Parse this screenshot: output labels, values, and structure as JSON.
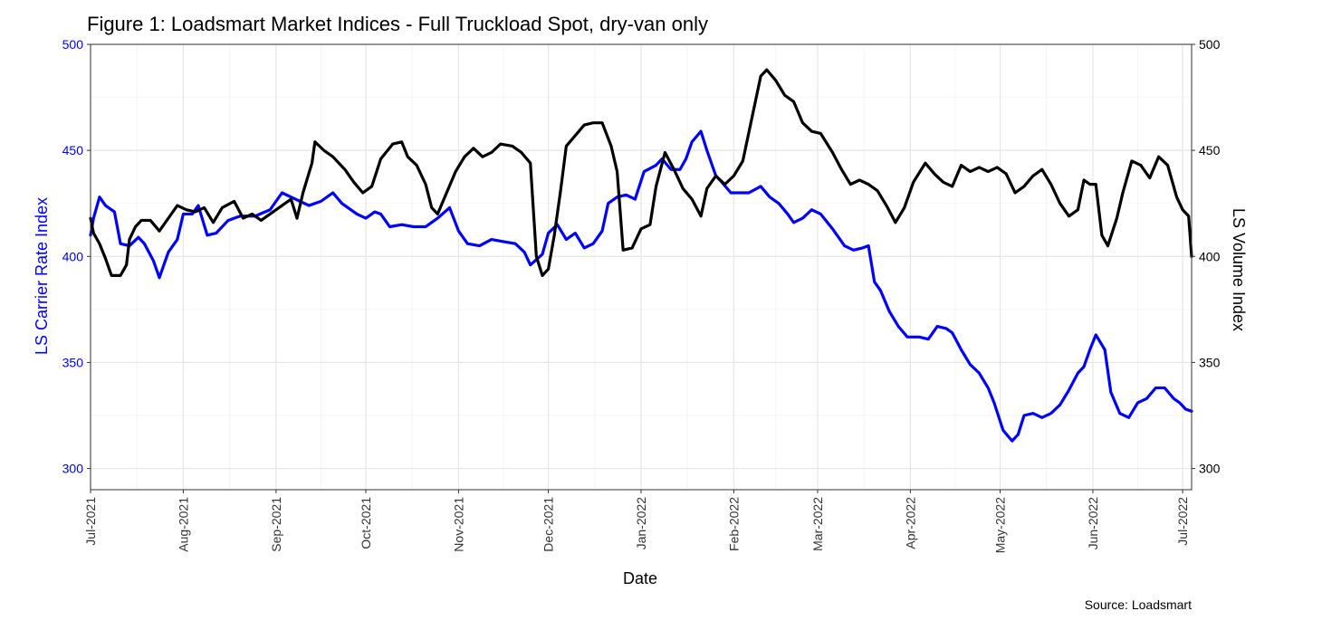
{
  "chart_data": {
    "type": "line",
    "title": "Figure 1: Loadsmart Market Indices - Full Truckload Spot, dry-van only",
    "xlabel": "Date",
    "ylabel_left": "LS Carrier Rate Index",
    "ylabel_right": "LS Volume Index",
    "caption": "Source: Loadsmart",
    "x_range": [
      "2021-07-01",
      "2022-07-04"
    ],
    "x_ticks": [
      "Jul-2021",
      "Aug-2021",
      "Sep-2021",
      "Oct-2021",
      "Nov-2021",
      "Dec-2021",
      "Jan-2022",
      "Feb-2022",
      "Mar-2022",
      "Apr-2022",
      "May-2022",
      "Jun-2022",
      "Jul-2022"
    ],
    "y_left_range": [
      290,
      500
    ],
    "y_right_range": [
      290,
      500
    ],
    "y_ticks": [
      300,
      350,
      400,
      450,
      500
    ],
    "grid": true,
    "colors": {
      "carrier_rate": "#0000ff",
      "volume": "#000000",
      "left_axis_text": "#0000ff",
      "right_axis_text": "#000000"
    },
    "series": [
      {
        "name": "LS Carrier Rate Index",
        "axis": "left",
        "color": "#0000ff",
        "points": [
          [
            "2021-07-01",
            410
          ],
          [
            "2021-07-02",
            418
          ],
          [
            "2021-07-04",
            428
          ],
          [
            "2021-07-06",
            424
          ],
          [
            "2021-07-09",
            421
          ],
          [
            "2021-07-11",
            406
          ],
          [
            "2021-07-14",
            405
          ],
          [
            "2021-07-17",
            409
          ],
          [
            "2021-07-19",
            406
          ],
          [
            "2021-07-22",
            398
          ],
          [
            "2021-07-24",
            390
          ],
          [
            "2021-07-27",
            402
          ],
          [
            "2021-07-30",
            408
          ],
          [
            "2021-08-01",
            420
          ],
          [
            "2021-08-04",
            420
          ],
          [
            "2021-08-06",
            424
          ],
          [
            "2021-08-09",
            410
          ],
          [
            "2021-08-12",
            411
          ],
          [
            "2021-08-16",
            417
          ],
          [
            "2021-08-20",
            419
          ],
          [
            "2021-08-25",
            419
          ],
          [
            "2021-08-30",
            422
          ],
          [
            "2021-09-03",
            430
          ],
          [
            "2021-09-06",
            428
          ],
          [
            "2021-09-09",
            426
          ],
          [
            "2021-09-12",
            424
          ],
          [
            "2021-09-16",
            426
          ],
          [
            "2021-09-20",
            430
          ],
          [
            "2021-09-23",
            425
          ],
          [
            "2021-09-28",
            420
          ],
          [
            "2021-10-01",
            418
          ],
          [
            "2021-10-04",
            421
          ],
          [
            "2021-10-06",
            420
          ],
          [
            "2021-10-09",
            414
          ],
          [
            "2021-10-13",
            415
          ],
          [
            "2021-10-17",
            414
          ],
          [
            "2021-10-21",
            414
          ],
          [
            "2021-10-25",
            418
          ],
          [
            "2021-10-29",
            423
          ],
          [
            "2021-11-01",
            412
          ],
          [
            "2021-11-04",
            406
          ],
          [
            "2021-11-08",
            405
          ],
          [
            "2021-11-12",
            408
          ],
          [
            "2021-11-16",
            407
          ],
          [
            "2021-11-20",
            406
          ],
          [
            "2021-11-23",
            402
          ],
          [
            "2021-11-25",
            396
          ],
          [
            "2021-11-29",
            401
          ],
          [
            "2021-12-01",
            411
          ],
          [
            "2021-12-04",
            415
          ],
          [
            "2021-12-07",
            408
          ],
          [
            "2021-12-10",
            411
          ],
          [
            "2021-12-13",
            404
          ],
          [
            "2021-12-16",
            406
          ],
          [
            "2021-12-19",
            412
          ],
          [
            "2021-12-21",
            425
          ],
          [
            "2021-12-24",
            428
          ],
          [
            "2021-12-27",
            429
          ],
          [
            "2021-12-30",
            427
          ],
          [
            "2022-01-02",
            440
          ],
          [
            "2022-01-06",
            443
          ],
          [
            "2022-01-08",
            446
          ],
          [
            "2022-01-11",
            441
          ],
          [
            "2022-01-14",
            441
          ],
          [
            "2022-01-16",
            446
          ],
          [
            "2022-01-18",
            454
          ],
          [
            "2022-01-21",
            459
          ],
          [
            "2022-01-23",
            450
          ],
          [
            "2022-01-26",
            438
          ],
          [
            "2022-01-28",
            435
          ],
          [
            "2022-01-31",
            430
          ],
          [
            "2022-02-03",
            430
          ],
          [
            "2022-02-06",
            430
          ],
          [
            "2022-02-10",
            433
          ],
          [
            "2022-02-13",
            428
          ],
          [
            "2022-02-16",
            425
          ],
          [
            "2022-02-19",
            420
          ],
          [
            "2022-02-21",
            416
          ],
          [
            "2022-02-24",
            418
          ],
          [
            "2022-02-27",
            422
          ],
          [
            "2022-03-02",
            420
          ],
          [
            "2022-03-06",
            413
          ],
          [
            "2022-03-10",
            405
          ],
          [
            "2022-03-13",
            403
          ],
          [
            "2022-03-16",
            404
          ],
          [
            "2022-03-18",
            405
          ],
          [
            "2022-03-20",
            388
          ],
          [
            "2022-03-22",
            384
          ],
          [
            "2022-03-25",
            374
          ],
          [
            "2022-03-28",
            367
          ],
          [
            "2022-03-31",
            362
          ],
          [
            "2022-04-04",
            362
          ],
          [
            "2022-04-07",
            361
          ],
          [
            "2022-04-10",
            367
          ],
          [
            "2022-04-13",
            366
          ],
          [
            "2022-04-15",
            364
          ],
          [
            "2022-04-18",
            356
          ],
          [
            "2022-04-21",
            349
          ],
          [
            "2022-04-24",
            345
          ],
          [
            "2022-04-27",
            338
          ],
          [
            "2022-04-29",
            331
          ],
          [
            "2022-05-02",
            318
          ],
          [
            "2022-05-05",
            313
          ],
          [
            "2022-05-07",
            316
          ],
          [
            "2022-05-09",
            325
          ],
          [
            "2022-05-12",
            326
          ],
          [
            "2022-05-15",
            324
          ],
          [
            "2022-05-18",
            326
          ],
          [
            "2022-05-21",
            330
          ],
          [
            "2022-05-24",
            337
          ],
          [
            "2022-05-27",
            345
          ],
          [
            "2022-05-29",
            348
          ],
          [
            "2022-05-31",
            356
          ],
          [
            "2022-06-02",
            363
          ],
          [
            "2022-06-05",
            356
          ],
          [
            "2022-06-07",
            336
          ],
          [
            "2022-06-10",
            326
          ],
          [
            "2022-06-13",
            324
          ],
          [
            "2022-06-16",
            331
          ],
          [
            "2022-06-19",
            333
          ],
          [
            "2022-06-22",
            338
          ],
          [
            "2022-06-25",
            338
          ],
          [
            "2022-06-28",
            333
          ],
          [
            "2022-06-30",
            331
          ],
          [
            "2022-07-02",
            328
          ],
          [
            "2022-07-04",
            327
          ]
        ]
      },
      {
        "name": "LS Volume Index",
        "axis": "right",
        "color": "#000000",
        "points": [
          [
            "2021-07-01",
            418
          ],
          [
            "2021-07-02",
            411
          ],
          [
            "2021-07-04",
            406
          ],
          [
            "2021-07-06",
            399
          ],
          [
            "2021-07-08",
            391
          ],
          [
            "2021-07-11",
            391
          ],
          [
            "2021-07-13",
            396
          ],
          [
            "2021-07-14",
            408
          ],
          [
            "2021-07-16",
            414
          ],
          [
            "2021-07-18",
            417
          ],
          [
            "2021-07-21",
            417
          ],
          [
            "2021-07-24",
            412
          ],
          [
            "2021-07-27",
            418
          ],
          [
            "2021-07-30",
            424
          ],
          [
            "2021-08-02",
            422
          ],
          [
            "2021-08-05",
            421
          ],
          [
            "2021-08-08",
            423
          ],
          [
            "2021-08-11",
            416
          ],
          [
            "2021-08-14",
            423
          ],
          [
            "2021-08-18",
            426
          ],
          [
            "2021-08-21",
            418
          ],
          [
            "2021-08-24",
            420
          ],
          [
            "2021-08-27",
            417
          ],
          [
            "2021-08-30",
            420
          ],
          [
            "2021-09-03",
            424
          ],
          [
            "2021-09-06",
            427
          ],
          [
            "2021-09-08",
            418
          ],
          [
            "2021-09-10",
            430
          ],
          [
            "2021-09-13",
            444
          ],
          [
            "2021-09-14",
            454
          ],
          [
            "2021-09-17",
            450
          ],
          [
            "2021-09-20",
            447
          ],
          [
            "2021-09-24",
            441
          ],
          [
            "2021-09-27",
            435
          ],
          [
            "2021-09-30",
            430
          ],
          [
            "2021-10-03",
            433
          ],
          [
            "2021-10-06",
            446
          ],
          [
            "2021-10-10",
            453
          ],
          [
            "2021-10-13",
            454
          ],
          [
            "2021-10-15",
            447
          ],
          [
            "2021-10-18",
            443
          ],
          [
            "2021-10-21",
            434
          ],
          [
            "2021-10-23",
            423
          ],
          [
            "2021-10-25",
            420
          ],
          [
            "2021-10-28",
            430
          ],
          [
            "2021-10-31",
            440
          ],
          [
            "2021-11-03",
            447
          ],
          [
            "2021-11-06",
            451
          ],
          [
            "2021-11-09",
            447
          ],
          [
            "2021-11-12",
            449
          ],
          [
            "2021-11-15",
            453
          ],
          [
            "2021-11-19",
            452
          ],
          [
            "2021-11-22",
            449
          ],
          [
            "2021-11-25",
            444
          ],
          [
            "2021-11-27",
            400
          ],
          [
            "2021-11-29",
            391
          ],
          [
            "2021-12-01",
            394
          ],
          [
            "2021-12-03",
            410
          ],
          [
            "2021-12-05",
            430
          ],
          [
            "2021-12-07",
            452
          ],
          [
            "2021-12-10",
            457
          ],
          [
            "2021-12-13",
            462
          ],
          [
            "2021-12-16",
            463
          ],
          [
            "2021-12-19",
            463
          ],
          [
            "2021-12-22",
            452
          ],
          [
            "2021-12-24",
            440
          ],
          [
            "2021-12-26",
            403
          ],
          [
            "2021-12-29",
            404
          ],
          [
            "2022-01-01",
            413
          ],
          [
            "2022-01-04",
            415
          ],
          [
            "2022-01-06",
            433
          ],
          [
            "2022-01-09",
            449
          ],
          [
            "2022-01-12",
            441
          ],
          [
            "2022-01-15",
            432
          ],
          [
            "2022-01-18",
            427
          ],
          [
            "2022-01-21",
            419
          ],
          [
            "2022-01-23",
            432
          ],
          [
            "2022-01-26",
            438
          ],
          [
            "2022-01-29",
            434
          ],
          [
            "2022-02-01",
            438
          ],
          [
            "2022-02-04",
            445
          ],
          [
            "2022-02-07",
            465
          ],
          [
            "2022-02-10",
            485
          ],
          [
            "2022-02-12",
            488
          ],
          [
            "2022-02-15",
            483
          ],
          [
            "2022-02-18",
            476
          ],
          [
            "2022-02-21",
            473
          ],
          [
            "2022-02-24",
            463
          ],
          [
            "2022-02-27",
            459
          ],
          [
            "2022-03-02",
            458
          ],
          [
            "2022-03-06",
            449
          ],
          [
            "2022-03-09",
            441
          ],
          [
            "2022-03-12",
            434
          ],
          [
            "2022-03-15",
            436
          ],
          [
            "2022-03-18",
            434
          ],
          [
            "2022-03-21",
            431
          ],
          [
            "2022-03-24",
            424
          ],
          [
            "2022-03-27",
            416
          ],
          [
            "2022-03-30",
            423
          ],
          [
            "2022-04-02",
            435
          ],
          [
            "2022-04-06",
            444
          ],
          [
            "2022-04-09",
            439
          ],
          [
            "2022-04-12",
            435
          ],
          [
            "2022-04-15",
            433
          ],
          [
            "2022-04-18",
            443
          ],
          [
            "2022-04-21",
            440
          ],
          [
            "2022-04-24",
            442
          ],
          [
            "2022-04-27",
            440
          ],
          [
            "2022-04-30",
            442
          ],
          [
            "2022-05-03",
            439
          ],
          [
            "2022-05-06",
            430
          ],
          [
            "2022-05-09",
            433
          ],
          [
            "2022-05-12",
            438
          ],
          [
            "2022-05-15",
            441
          ],
          [
            "2022-05-18",
            434
          ],
          [
            "2022-05-21",
            425
          ],
          [
            "2022-05-24",
            419
          ],
          [
            "2022-05-27",
            422
          ],
          [
            "2022-05-29",
            436
          ],
          [
            "2022-05-31",
            434
          ],
          [
            "2022-06-02",
            434
          ],
          [
            "2022-06-04",
            410
          ],
          [
            "2022-06-06",
            405
          ],
          [
            "2022-06-09",
            418
          ],
          [
            "2022-06-11",
            430
          ],
          [
            "2022-06-14",
            445
          ],
          [
            "2022-06-17",
            443
          ],
          [
            "2022-06-20",
            437
          ],
          [
            "2022-06-23",
            447
          ],
          [
            "2022-06-26",
            443
          ],
          [
            "2022-06-29",
            428
          ],
          [
            "2022-07-01",
            422
          ],
          [
            "2022-07-03",
            419
          ],
          [
            "2022-07-04",
            400
          ]
        ]
      }
    ]
  }
}
